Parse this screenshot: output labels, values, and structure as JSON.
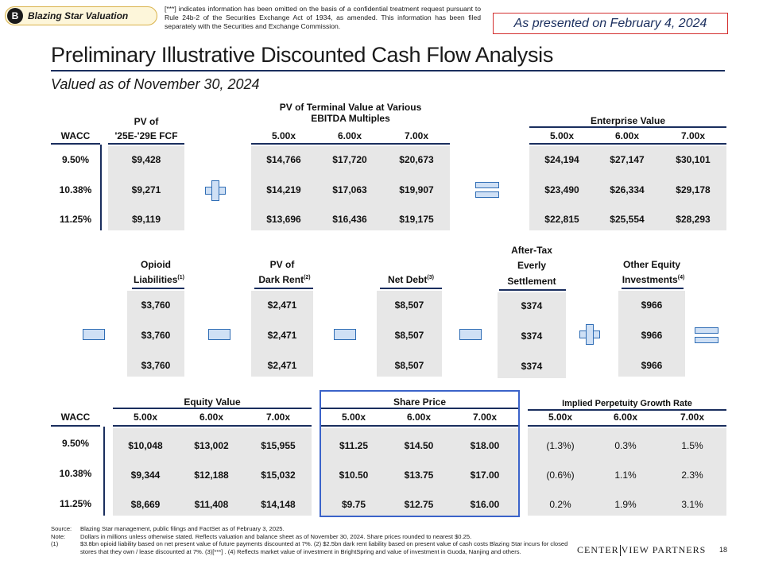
{
  "header": {
    "badge_letter": "B",
    "badge_text": "Blazing Star Valuation",
    "confidential_note": "[***] indicates information has been omitted on the basis of a confidential treatment request pursuant to Rule 24b-2 of the Securities Exchange Act of 1934, as amended. This information has been filed separately with the Securities and Exchange Commission.",
    "presented": "As presented on February 4, 2024",
    "title": "Preliminary Illustrative Discounted Cash Flow Analysis",
    "subtitle": "Valued as of November 30, 2024"
  },
  "top": {
    "wacc_header": "WACC",
    "pv_fcf_header_1": "PV of",
    "pv_fcf_header_2": "'25E-'29E FCF",
    "tv_header_1": "PV of Terminal Value at Various",
    "tv_header_2": "EBITDA Multiples",
    "ev_header": "Enterprise Value",
    "multiples": [
      "5.00x",
      "6.00x",
      "7.00x"
    ],
    "rows": [
      {
        "wacc": "9.50%",
        "pv_fcf": "$9,428",
        "tv": [
          "$14,766",
          "$17,720",
          "$20,673"
        ],
        "ev": [
          "$24,194",
          "$27,147",
          "$30,101"
        ]
      },
      {
        "wacc": "10.38%",
        "pv_fcf": "$9,271",
        "tv": [
          "$14,219",
          "$17,063",
          "$19,907"
        ],
        "ev": [
          "$23,490",
          "$26,334",
          "$29,178"
        ]
      },
      {
        "wacc": "11.25%",
        "pv_fcf": "$9,119",
        "tv": [
          "$13,696",
          "$16,436",
          "$19,175"
        ],
        "ev": [
          "$22,815",
          "$25,554",
          "$28,293"
        ]
      }
    ]
  },
  "middle": {
    "opioid": {
      "l1": "Opioid",
      "l2": "Liabilities",
      "sup": "(1)",
      "values": [
        "$3,760",
        "$3,760",
        "$3,760"
      ]
    },
    "dark_rent": {
      "l1": "PV of",
      "l2": "Dark Rent",
      "sup": "(2)",
      "values": [
        "$2,471",
        "$2,471",
        "$2,471"
      ]
    },
    "net_debt": {
      "l1": "Net Debt",
      "sup": "(3)",
      "values": [
        "$8,507",
        "$8,507",
        "$8,507"
      ]
    },
    "settlement": {
      "l1": "After-Tax",
      "l2": "Everly",
      "l3": "Settlement",
      "values": [
        "$374",
        "$374",
        "$374"
      ]
    },
    "other_equity": {
      "l1": "Other Equity",
      "l2": "Investments",
      "sup": "(4)",
      "values": [
        "$966",
        "$966",
        "$966"
      ]
    }
  },
  "bottom": {
    "wacc_header": "WACC",
    "equity_header": "Equity Value",
    "share_header": "Share Price",
    "growth_header": "Implied Perpetuity Growth Rate",
    "multiples": [
      "5.00x",
      "6.00x",
      "7.00x"
    ],
    "rows": [
      {
        "wacc": "9.50%",
        "equity": [
          "$10,048",
          "$13,002",
          "$15,955"
        ],
        "share": [
          "$11.25",
          "$14.50",
          "$18.00"
        ],
        "growth": [
          "(1.3%)",
          "0.3%",
          "1.5%"
        ]
      },
      {
        "wacc": "10.38%",
        "equity": [
          "$9,344",
          "$12,188",
          "$15,032"
        ],
        "share": [
          "$10.50",
          "$13.75",
          "$17.00"
        ],
        "growth": [
          "(0.6%)",
          "1.1%",
          "2.3%"
        ]
      },
      {
        "wacc": "11.25%",
        "equity": [
          "$8,669",
          "$11,408",
          "$14,148"
        ],
        "share": [
          "$9.75",
          "$12.75",
          "$16.00"
        ],
        "growth": [
          "0.2%",
          "1.9%",
          "3.1%"
        ]
      }
    ]
  },
  "footer": {
    "source_label": "Source:",
    "source_text": "Blazing Star management, public filings and FactSet as of February 3, 2025.",
    "note_label": "Note:",
    "note_text": "Dollars in millions unless otherwise stated. Reflects valuation and balance sheet as of November 30, 2024. Share prices rounded to nearest $0.25.",
    "fn1_label": "(1)",
    "fn1_text": "$3.8bn opioid liability based on net present value of future payments discounted at 7%. (2) $2.5bn dark rent liability based on present value of cash costs Blazing Star incurs for closed stores that they own / lease discounted at 7%. (3)[***] . (4) Reflects market value of investment in BrightSpring and value of investment in Guoda, Nanjing and others.",
    "logo_left": "Center",
    "logo_right": "view Partners",
    "page_number": "18"
  },
  "colors": {
    "navy": "#1a2e5e",
    "band": "#e7e7e7",
    "accent_blue": "#3b63c9",
    "red": "#d32f2f"
  }
}
